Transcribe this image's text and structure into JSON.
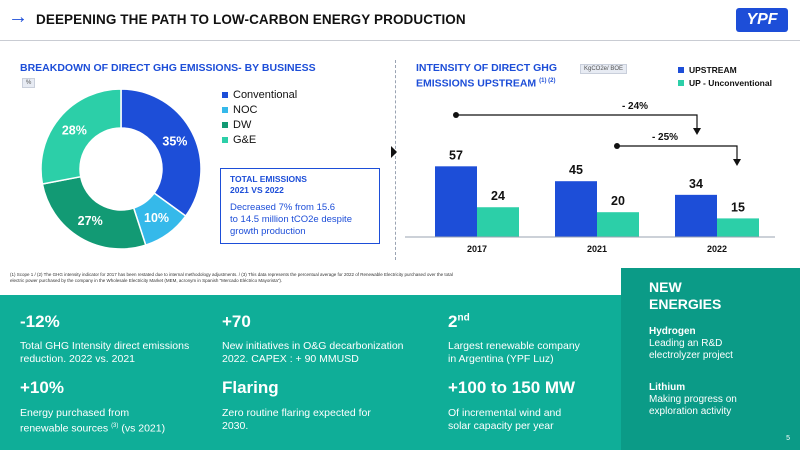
{
  "header": {
    "title": "DEEPENING THE PATH TO LOW-CARBON ENERGY PRODUCTION",
    "logo": "YPF"
  },
  "donut": {
    "title": "BREAKDOWN OF DIRECT GHG EMISSIONS- BY BUSINESS",
    "unit": "%"
  },
  "total_box": {
    "title_line1": "TOTAL EMISSIONS",
    "title_line2": "2021 VS 2022",
    "text_line1": "Decreased 7% from 15.6",
    "text_line2": "to 14.5 million tCO2e despite",
    "text_line3": "growth production"
  },
  "bars": {
    "title_line1": "INTENSITY OF DIRECT GHG",
    "title_line2": "EMISSIONS UPSTREAM",
    "title_sup": "(1) (2)",
    "unit": "KgCO2e/ BOE",
    "arrow1_label": "- 24%",
    "arrow2_label": "- 25%"
  },
  "chart_data": [
    {
      "type": "pie",
      "title": "BREAKDOWN OF DIRECT GHG EMISSIONS- BY BUSINESS",
      "unit": "%",
      "labels": [
        "Conventional",
        "NOC",
        "DW",
        "G&E"
      ],
      "values": [
        35,
        10,
        27,
        28
      ],
      "value_labels": [
        "35%",
        "10%",
        "27%",
        "28%"
      ],
      "colors": [
        "#1d4ed8",
        "#35b9ea",
        "#129a74",
        "#2ccfa8"
      ],
      "legend_position": "right"
    },
    {
      "type": "bar",
      "title": "INTENSITY OF DIRECT GHG EMISSIONS UPSTREAM",
      "categories": [
        "2017",
        "2021",
        "2022"
      ],
      "series": [
        {
          "name": "UPSTREAM",
          "values": [
            57,
            45,
            34
          ],
          "color": "#1d4ed8"
        },
        {
          "name": "UP - Unconventional",
          "values": [
            24,
            20,
            15
          ],
          "color": "#2ccfa8"
        }
      ],
      "ylim": [
        0,
        60
      ],
      "legend_position": "top-right",
      "grid": false
    }
  ],
  "footnote": {
    "line1": "(1) Scope 1  /  (2) The GHG intensity indicator for 2017 has been restated due to internal methodology adjustments.   /  (3) This data represents the percentual average for 2022 of Renewable Electricity purchased over the total",
    "line2": "electric power purchased by the company in the Wholesale Electricity Market (MEM, acronym in Spanish “Mercado Eléctrico Mayorista”)."
  },
  "kpis": [
    {
      "big": "-12%",
      "sup": "",
      "line1": "Total GHG Intensity direct emissions",
      "line2": "reduction. 2022 vs. 2021"
    },
    {
      "big": "+70",
      "sup": "",
      "line1": "New initiatives in O&G decarbonization",
      "line2": "2022. CAPEX : + 90  MMUSD"
    },
    {
      "big": "2",
      "sup": "nd",
      "line1": "Largest renewable company",
      "line2": "in Argentina (YPF Luz)"
    },
    {
      "big": "+10%",
      "sup": "",
      "line1": "Energy purchased from",
      "line2_pre": "renewable sources ",
      "line2_sup": "(3)",
      "line2_post": " (vs 2021)"
    },
    {
      "big": "Flaring",
      "sup": "",
      "line1": "Zero routine flaring expected for",
      "line2": "2030."
    },
    {
      "big": "+100 to 150 MW",
      "sup": "",
      "line1": "Of incremental wind and",
      "line2": "solar capacity per year"
    }
  ],
  "new_energies": {
    "title_line1": "NEW",
    "title_line2": "ENERGIES",
    "items": [
      {
        "heading": "Hydrogen",
        "line1": "Leading an R&D",
        "line2": "electrolyzer project"
      },
      {
        "heading": "Lithium",
        "line1": "Making progress on",
        "line2": "exploration activity"
      }
    ]
  },
  "page_number": "5"
}
